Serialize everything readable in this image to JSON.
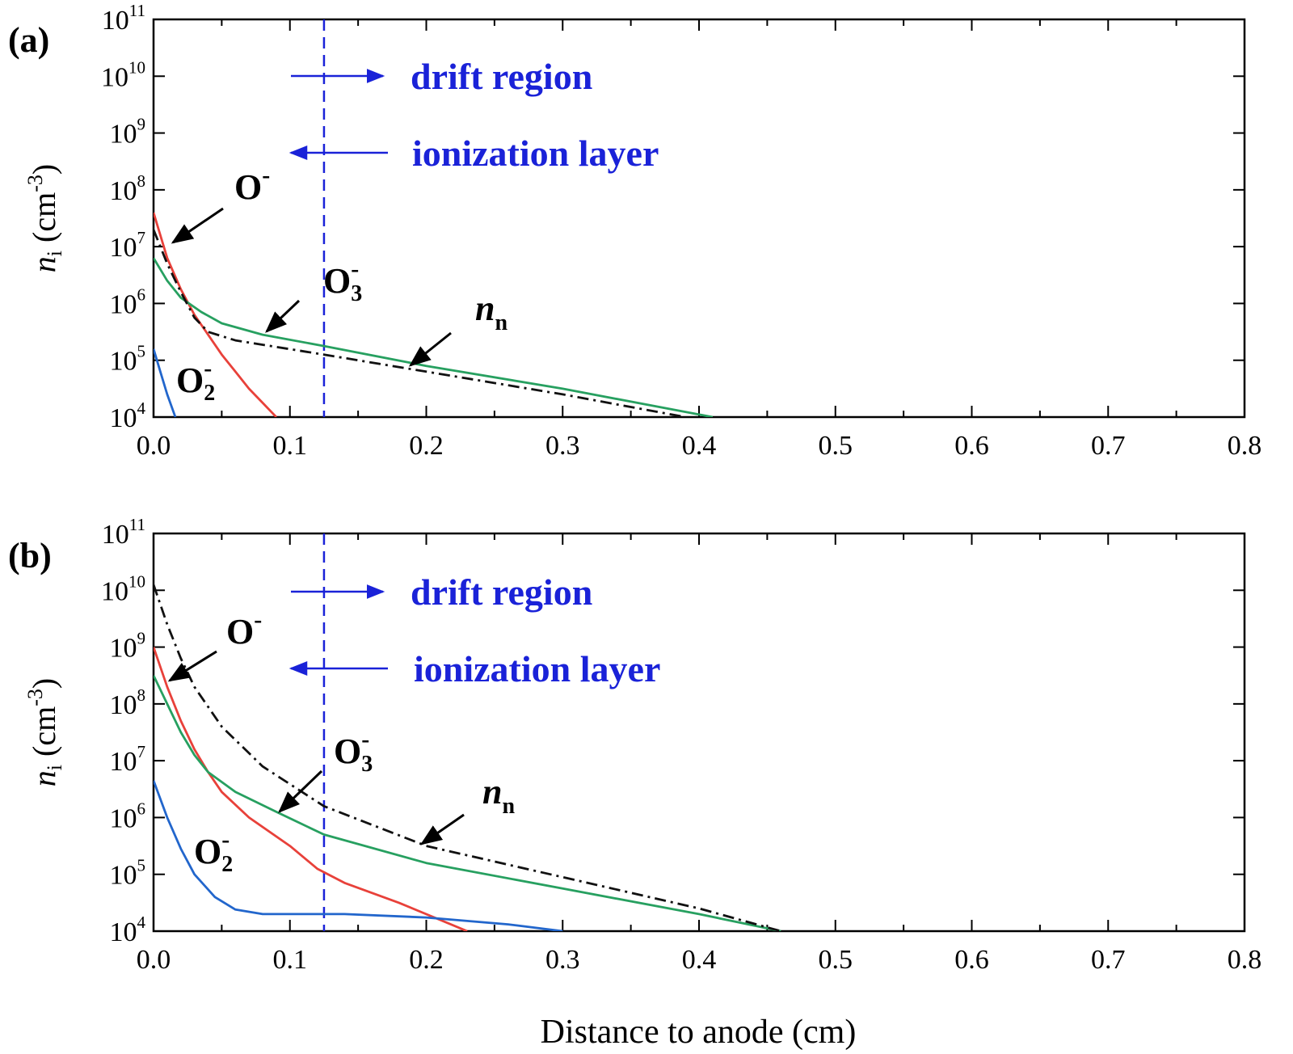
{
  "chart_data": [
    {
      "panel": "(a)",
      "type": "line",
      "ylabel_main": "n",
      "ylabel_sub": "i",
      "ylabel_units": "(cm",
      "ylabel_units_sup": "-3",
      "ylabel_close": ")",
      "xlim": [
        0,
        0.8
      ],
      "ylim_exp": [
        4,
        11
      ],
      "yscale": "log",
      "x_ticks": [
        "0.0",
        "0.1",
        "0.2",
        "0.3",
        "0.4",
        "0.5",
        "0.6",
        "0.7",
        "0.8"
      ],
      "y_tick_base": "10",
      "y_tick_exps": [
        "4",
        "5",
        "6",
        "7",
        "8",
        "9",
        "10",
        "11"
      ],
      "boundary_x": 0.125,
      "annotations": {
        "drift_region": "drift region",
        "ionization_layer": "ionization layer"
      },
      "series": [
        {
          "label_base": "O",
          "label_sub": "",
          "label_sup": "-",
          "color": "#e8413a",
          "dash": "solid",
          "points": [
            [
              0,
              7.6
            ],
            [
              0.01,
              6.8
            ],
            [
              0.02,
              6.25
            ],
            [
              0.03,
              5.8
            ],
            [
              0.04,
              5.45
            ],
            [
              0.05,
              5.1
            ],
            [
              0.06,
              4.8
            ],
            [
              0.07,
              4.5
            ],
            [
              0.08,
              4.25
            ],
            [
              0.09,
              4.0
            ]
          ]
        },
        {
          "label_base": "O",
          "label_sub": "3",
          "label_sup": "-",
          "color": "#27a060",
          "dash": "solid",
          "points": [
            [
              0,
              6.8
            ],
            [
              0.01,
              6.4
            ],
            [
              0.02,
              6.1
            ],
            [
              0.035,
              5.85
            ],
            [
              0.05,
              5.65
            ],
            [
              0.08,
              5.45
            ],
            [
              0.125,
              5.25
            ],
            [
              0.2,
              4.9
            ],
            [
              0.3,
              4.5
            ],
            [
              0.41,
              4.0
            ]
          ]
        },
        {
          "label_base": "n",
          "label_sub": "n",
          "label_sup": "",
          "color": "#111111",
          "dash": "dashdot",
          "points": [
            [
              0,
              7.3
            ],
            [
              0.01,
              6.7
            ],
            [
              0.02,
              6.2
            ],
            [
              0.03,
              5.75
            ],
            [
              0.04,
              5.5
            ],
            [
              0.06,
              5.35
            ],
            [
              0.125,
              5.1
            ],
            [
              0.2,
              4.8
            ],
            [
              0.3,
              4.4
            ],
            [
              0.39,
              4.0
            ]
          ]
        },
        {
          "label_base": "O",
          "label_sub": "2",
          "label_sup": "-",
          "color": "#2266cc",
          "dash": "solid",
          "points": [
            [
              0,
              5.2
            ],
            [
              0.005,
              4.8
            ],
            [
              0.01,
              4.4
            ],
            [
              0.016,
              4.0
            ]
          ]
        }
      ]
    },
    {
      "panel": "(b)",
      "type": "line",
      "ylabel_main": "n",
      "ylabel_sub": "i",
      "ylabel_units": "(cm",
      "ylabel_units_sup": "-3",
      "ylabel_close": ")",
      "xlim": [
        0,
        0.8
      ],
      "ylim_exp": [
        4,
        11
      ],
      "yscale": "log",
      "x_ticks": [
        "0.0",
        "0.1",
        "0.2",
        "0.3",
        "0.4",
        "0.5",
        "0.6",
        "0.7",
        "0.8"
      ],
      "y_tick_base": "10",
      "y_tick_exps": [
        "4",
        "5",
        "6",
        "7",
        "8",
        "9",
        "10",
        "11"
      ],
      "boundary_x": 0.125,
      "annotations": {
        "drift_region": "drift region",
        "ionization_layer": "ionization layer"
      },
      "series": [
        {
          "label_base": "O",
          "label_sub": "",
          "label_sup": "-",
          "color": "#e8413a",
          "dash": "solid",
          "points": [
            [
              0,
              9.0
            ],
            [
              0.01,
              8.3
            ],
            [
              0.02,
              7.7
            ],
            [
              0.03,
              7.2
            ],
            [
              0.04,
              6.8
            ],
            [
              0.05,
              6.45
            ],
            [
              0.07,
              6.0
            ],
            [
              0.1,
              5.5
            ],
            [
              0.12,
              5.1
            ],
            [
              0.14,
              4.85
            ],
            [
              0.18,
              4.5
            ],
            [
              0.23,
              4.0
            ]
          ]
        },
        {
          "label_base": "O",
          "label_sub": "3",
          "label_sup": "-",
          "color": "#27a060",
          "dash": "solid",
          "points": [
            [
              0,
              8.5
            ],
            [
              0.01,
              8.0
            ],
            [
              0.02,
              7.5
            ],
            [
              0.03,
              7.1
            ],
            [
              0.04,
              6.8
            ],
            [
              0.06,
              6.45
            ],
            [
              0.09,
              6.1
            ],
            [
              0.125,
              5.7
            ],
            [
              0.2,
              5.2
            ],
            [
              0.3,
              4.75
            ],
            [
              0.4,
              4.3
            ],
            [
              0.46,
              4.0
            ]
          ]
        },
        {
          "label_base": "n",
          "label_sub": "n",
          "label_sup": "",
          "color": "#111111",
          "dash": "dashdot",
          "points": [
            [
              0,
              10.1
            ],
            [
              0.01,
              9.4
            ],
            [
              0.02,
              8.8
            ],
            [
              0.03,
              8.3
            ],
            [
              0.05,
              7.6
            ],
            [
              0.08,
              6.9
            ],
            [
              0.125,
              6.2
            ],
            [
              0.2,
              5.5
            ],
            [
              0.3,
              4.95
            ],
            [
              0.4,
              4.4
            ],
            [
              0.46,
              4.0
            ]
          ]
        },
        {
          "label_base": "O",
          "label_sub": "2",
          "label_sup": "-",
          "color": "#2266cc",
          "dash": "solid",
          "points": [
            [
              0,
              6.65
            ],
            [
              0.01,
              6.0
            ],
            [
              0.02,
              5.45
            ],
            [
              0.03,
              5.0
            ],
            [
              0.045,
              4.6
            ],
            [
              0.06,
              4.38
            ],
            [
              0.08,
              4.3
            ],
            [
              0.14,
              4.3
            ],
            [
              0.2,
              4.24
            ],
            [
              0.26,
              4.12
            ],
            [
              0.3,
              4.0
            ]
          ]
        }
      ]
    }
  ],
  "xlabel": "Distance to anode (cm)"
}
